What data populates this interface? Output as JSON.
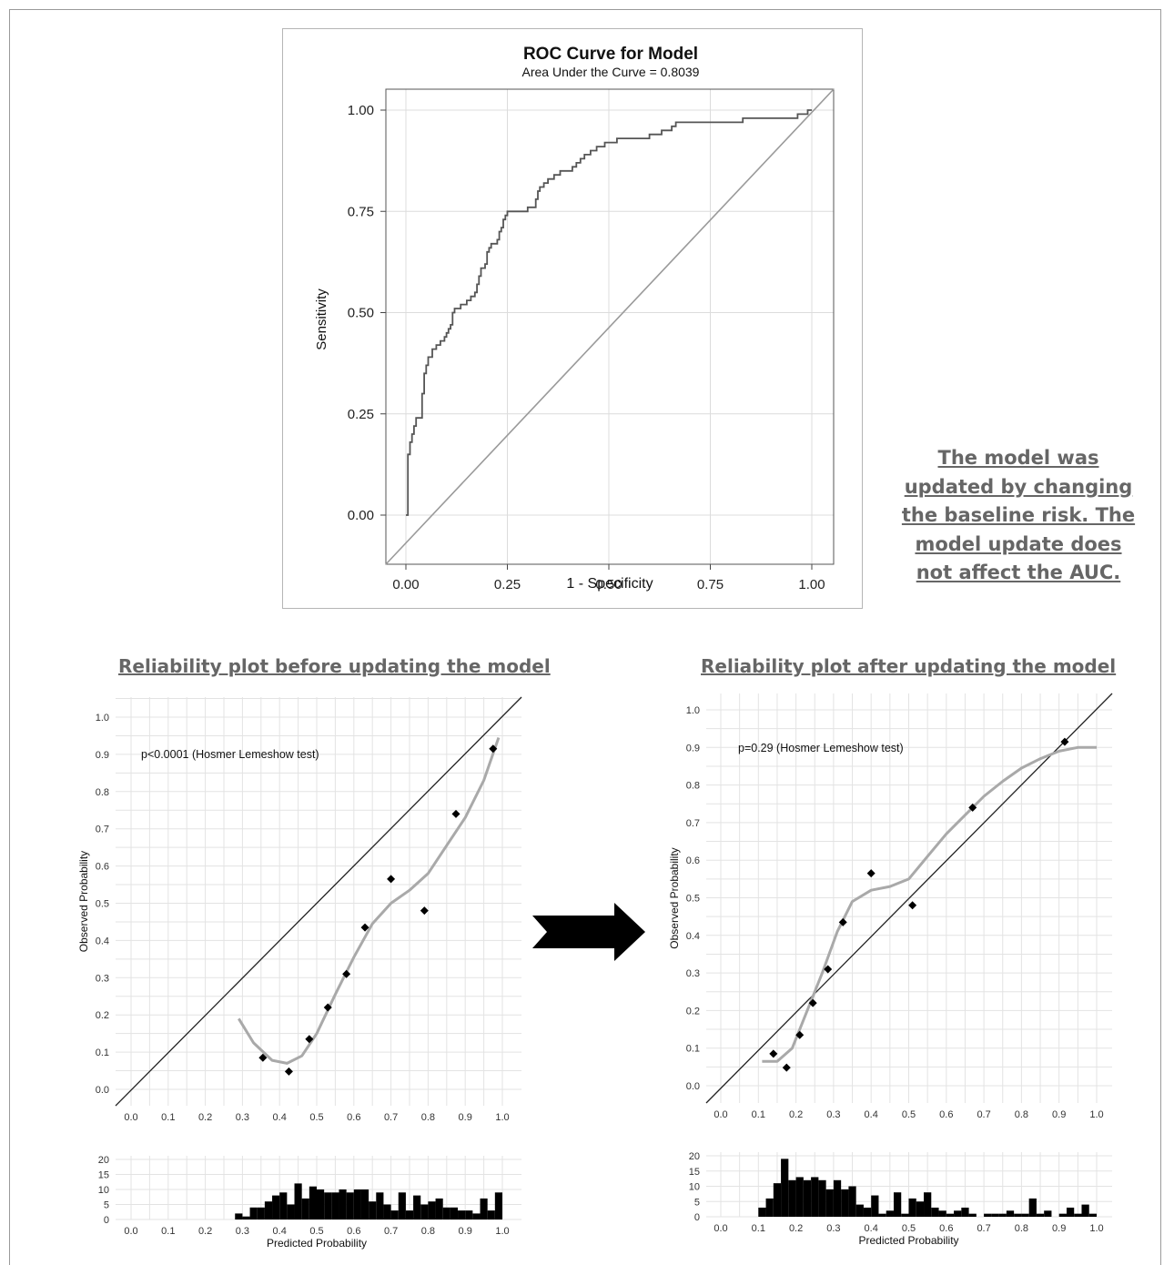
{
  "note": "The model was updated by changing the baseline risk. The model update does not affect the AUC.",
  "arrow_icon": "right-arrow-icon",
  "chart_data": [
    {
      "type": "line",
      "title": "ROC Curve for Model",
      "subtitle": "Area Under the Curve = 0.8039",
      "xlabel": "1 - Specificity",
      "ylabel": "Sensitivity",
      "xlim": [
        0,
        1
      ],
      "ylim": [
        0,
        1
      ],
      "xticks": [
        "0.00",
        "0.25",
        "0.50",
        "0.75",
        "1.00"
      ],
      "yticks": [
        "0.00",
        "0.25",
        "0.50",
        "0.75",
        "1.00"
      ],
      "grid": true,
      "series": [
        {
          "step": true,
          "points": [
            [
              0,
              0
            ],
            [
              0.005,
              0
            ],
            [
              0.005,
              0.15
            ],
            [
              0.01,
              0.15
            ],
            [
              0.01,
              0.18
            ],
            [
              0.015,
              0.18
            ],
            [
              0.015,
              0.2
            ],
            [
              0.02,
              0.2
            ],
            [
              0.02,
              0.22
            ],
            [
              0.025,
              0.22
            ],
            [
              0.025,
              0.24
            ],
            [
              0.04,
              0.24
            ],
            [
              0.04,
              0.29
            ],
            [
              0.04,
              0.3
            ],
            [
              0.045,
              0.3
            ],
            [
              0.045,
              0.35
            ],
            [
              0.05,
              0.35
            ],
            [
              0.05,
              0.37
            ],
            [
              0.055,
              0.37
            ],
            [
              0.055,
              0.39
            ],
            [
              0.065,
              0.39
            ],
            [
              0.065,
              0.41
            ],
            [
              0.075,
              0.41
            ],
            [
              0.075,
              0.42
            ],
            [
              0.085,
              0.42
            ],
            [
              0.085,
              0.43
            ],
            [
              0.095,
              0.43
            ],
            [
              0.095,
              0.44
            ],
            [
              0.1,
              0.44
            ],
            [
              0.1,
              0.45
            ],
            [
              0.105,
              0.45
            ],
            [
              0.105,
              0.46
            ],
            [
              0.11,
              0.46
            ],
            [
              0.11,
              0.47
            ],
            [
              0.115,
              0.47
            ],
            [
              0.115,
              0.5
            ],
            [
              0.12,
              0.5
            ],
            [
              0.12,
              0.51
            ],
            [
              0.135,
              0.51
            ],
            [
              0.135,
              0.52
            ],
            [
              0.15,
              0.52
            ],
            [
              0.15,
              0.53
            ],
            [
              0.16,
              0.53
            ],
            [
              0.16,
              0.54
            ],
            [
              0.17,
              0.54
            ],
            [
              0.17,
              0.55
            ],
            [
              0.175,
              0.55
            ],
            [
              0.175,
              0.57
            ],
            [
              0.18,
              0.57
            ],
            [
              0.18,
              0.59
            ],
            [
              0.185,
              0.59
            ],
            [
              0.185,
              0.61
            ],
            [
              0.195,
              0.61
            ],
            [
              0.195,
              0.62
            ],
            [
              0.2,
              0.62
            ],
            [
              0.2,
              0.65
            ],
            [
              0.205,
              0.65
            ],
            [
              0.205,
              0.66
            ],
            [
              0.21,
              0.66
            ],
            [
              0.21,
              0.67
            ],
            [
              0.225,
              0.67
            ],
            [
              0.225,
              0.68
            ],
            [
              0.23,
              0.68
            ],
            [
              0.23,
              0.7
            ],
            [
              0.235,
              0.7
            ],
            [
              0.235,
              0.71
            ],
            [
              0.24,
              0.71
            ],
            [
              0.24,
              0.73
            ],
            [
              0.245,
              0.73
            ],
            [
              0.245,
              0.74
            ],
            [
              0.25,
              0.74
            ],
            [
              0.25,
              0.75
            ],
            [
              0.3,
              0.75
            ],
            [
              0.3,
              0.76
            ],
            [
              0.32,
              0.76
            ],
            [
              0.32,
              0.78
            ],
            [
              0.325,
              0.78
            ],
            [
              0.325,
              0.8
            ],
            [
              0.33,
              0.8
            ],
            [
              0.33,
              0.81
            ],
            [
              0.34,
              0.81
            ],
            [
              0.34,
              0.82
            ],
            [
              0.35,
              0.82
            ],
            [
              0.35,
              0.83
            ],
            [
              0.365,
              0.83
            ],
            [
              0.365,
              0.84
            ],
            [
              0.38,
              0.84
            ],
            [
              0.38,
              0.85
            ],
            [
              0.41,
              0.85
            ],
            [
              0.41,
              0.86
            ],
            [
              0.42,
              0.86
            ],
            [
              0.42,
              0.87
            ],
            [
              0.43,
              0.87
            ],
            [
              0.43,
              0.88
            ],
            [
              0.44,
              0.88
            ],
            [
              0.44,
              0.89
            ],
            [
              0.455,
              0.89
            ],
            [
              0.455,
              0.9
            ],
            [
              0.47,
              0.9
            ],
            [
              0.47,
              0.91
            ],
            [
              0.49,
              0.91
            ],
            [
              0.49,
              0.92
            ],
            [
              0.52,
              0.92
            ],
            [
              0.52,
              0.93
            ],
            [
              0.6,
              0.93
            ],
            [
              0.6,
              0.94
            ],
            [
              0.63,
              0.94
            ],
            [
              0.63,
              0.95
            ],
            [
              0.655,
              0.95
            ],
            [
              0.655,
              0.96
            ],
            [
              0.665,
              0.96
            ],
            [
              0.665,
              0.97
            ],
            [
              0.83,
              0.97
            ],
            [
              0.83,
              0.98
            ],
            [
              0.965,
              0.98
            ],
            [
              0.965,
              0.99
            ],
            [
              0.99,
              0.99
            ],
            [
              0.99,
              1.0
            ],
            [
              1,
              1
            ]
          ]
        },
        {
          "reference": true,
          "points": [
            [
              0,
              0
            ],
            [
              1,
              1
            ]
          ]
        }
      ]
    },
    {
      "type": "scatter",
      "title": "Reliability plot before updating the model",
      "annotation": "p<0.0001 (Hosmer Lemeshow test)",
      "ylabel": "Observed Probability",
      "xlabel": "Predicted Probability",
      "xlim": [
        0,
        1
      ],
      "ylim": [
        0,
        1
      ],
      "ticks": [
        "0.0",
        "0.1",
        "0.2",
        "0.3",
        "0.4",
        "0.5",
        "0.6",
        "0.7",
        "0.8",
        "0.9",
        "1.0"
      ],
      "grid": true,
      "points": [
        [
          0.355,
          0.085
        ],
        [
          0.425,
          0.048
        ],
        [
          0.48,
          0.135
        ],
        [
          0.53,
          0.22
        ],
        [
          0.58,
          0.31
        ],
        [
          0.63,
          0.435
        ],
        [
          0.7,
          0.565
        ],
        [
          0.79,
          0.48
        ],
        [
          0.875,
          0.74
        ],
        [
          0.975,
          0.915
        ]
      ],
      "smooth": [
        [
          0.29,
          0.19
        ],
        [
          0.33,
          0.125
        ],
        [
          0.38,
          0.078
        ],
        [
          0.42,
          0.07
        ],
        [
          0.46,
          0.09
        ],
        [
          0.5,
          0.15
        ],
        [
          0.55,
          0.255
        ],
        [
          0.6,
          0.355
        ],
        [
          0.65,
          0.445
        ],
        [
          0.7,
          0.5
        ],
        [
          0.75,
          0.535
        ],
        [
          0.8,
          0.58
        ],
        [
          0.85,
          0.655
        ],
        [
          0.9,
          0.73
        ],
        [
          0.95,
          0.83
        ],
        [
          0.99,
          0.945
        ]
      ],
      "histogram": {
        "ylim": [
          0,
          20
        ],
        "yticks": [
          "0",
          "5",
          "10",
          "15",
          "20"
        ],
        "bin_width": 0.02,
        "bins": [
          [
            0.28,
            2
          ],
          [
            0.3,
            1
          ],
          [
            0.32,
            4
          ],
          [
            0.34,
            4
          ],
          [
            0.36,
            6
          ],
          [
            0.38,
            8
          ],
          [
            0.4,
            9
          ],
          [
            0.42,
            5
          ],
          [
            0.44,
            12
          ],
          [
            0.46,
            7
          ],
          [
            0.48,
            11
          ],
          [
            0.5,
            10
          ],
          [
            0.52,
            9
          ],
          [
            0.54,
            9
          ],
          [
            0.56,
            10
          ],
          [
            0.58,
            9
          ],
          [
            0.6,
            10
          ],
          [
            0.62,
            10
          ],
          [
            0.64,
            6
          ],
          [
            0.66,
            9
          ],
          [
            0.68,
            5
          ],
          [
            0.7,
            3
          ],
          [
            0.72,
            9
          ],
          [
            0.74,
            3
          ],
          [
            0.76,
            8
          ],
          [
            0.78,
            5
          ],
          [
            0.8,
            6
          ],
          [
            0.82,
            7
          ],
          [
            0.84,
            4
          ],
          [
            0.86,
            4
          ],
          [
            0.88,
            3
          ],
          [
            0.9,
            3
          ],
          [
            0.92,
            2
          ],
          [
            0.94,
            7
          ],
          [
            0.96,
            3
          ],
          [
            0.98,
            9
          ]
        ]
      }
    },
    {
      "type": "scatter",
      "title": "Reliability plot after updating the model",
      "annotation": "p=0.29 (Hosmer Lemeshow test)",
      "ylabel": "Observed Probability",
      "xlabel": "Predicted Probability",
      "xlim": [
        0,
        1
      ],
      "ylim": [
        0,
        1
      ],
      "ticks": [
        "0.0",
        "0.1",
        "0.2",
        "0.3",
        "0.4",
        "0.5",
        "0.6",
        "0.7",
        "0.8",
        "0.9",
        "1.0"
      ],
      "grid": true,
      "points": [
        [
          0.14,
          0.085
        ],
        [
          0.175,
          0.048
        ],
        [
          0.21,
          0.135
        ],
        [
          0.245,
          0.22
        ],
        [
          0.285,
          0.31
        ],
        [
          0.325,
          0.435
        ],
        [
          0.4,
          0.565
        ],
        [
          0.51,
          0.48
        ],
        [
          0.67,
          0.74
        ],
        [
          0.915,
          0.915
        ]
      ],
      "smooth": [
        [
          0.11,
          0.065
        ],
        [
          0.15,
          0.065
        ],
        [
          0.19,
          0.1
        ],
        [
          0.23,
          0.2
        ],
        [
          0.27,
          0.3
        ],
        [
          0.31,
          0.41
        ],
        [
          0.35,
          0.49
        ],
        [
          0.4,
          0.52
        ],
        [
          0.45,
          0.53
        ],
        [
          0.5,
          0.55
        ],
        [
          0.55,
          0.61
        ],
        [
          0.6,
          0.67
        ],
        [
          0.65,
          0.72
        ],
        [
          0.7,
          0.77
        ],
        [
          0.75,
          0.81
        ],
        [
          0.8,
          0.845
        ],
        [
          0.85,
          0.87
        ],
        [
          0.9,
          0.89
        ],
        [
          0.95,
          0.9
        ],
        [
          1.0,
          0.9
        ]
      ],
      "histogram": {
        "ylim": [
          0,
          20
        ],
        "yticks": [
          "0",
          "5",
          "10",
          "15",
          "20"
        ],
        "bin_width": 0.02,
        "bins": [
          [
            0.1,
            3
          ],
          [
            0.12,
            6
          ],
          [
            0.14,
            11
          ],
          [
            0.16,
            19
          ],
          [
            0.18,
            12
          ],
          [
            0.2,
            13
          ],
          [
            0.22,
            12
          ],
          [
            0.24,
            13
          ],
          [
            0.26,
            12
          ],
          [
            0.28,
            9
          ],
          [
            0.3,
            12
          ],
          [
            0.32,
            9
          ],
          [
            0.34,
            10
          ],
          [
            0.36,
            4
          ],
          [
            0.38,
            3
          ],
          [
            0.4,
            7
          ],
          [
            0.42,
            1
          ],
          [
            0.44,
            2
          ],
          [
            0.46,
            8
          ],
          [
            0.48,
            1
          ],
          [
            0.5,
            6
          ],
          [
            0.52,
            5
          ],
          [
            0.54,
            8
          ],
          [
            0.56,
            3
          ],
          [
            0.58,
            2
          ],
          [
            0.6,
            1
          ],
          [
            0.62,
            2
          ],
          [
            0.64,
            3
          ],
          [
            0.66,
            1
          ],
          [
            0.7,
            1
          ],
          [
            0.72,
            1
          ],
          [
            0.74,
            1
          ],
          [
            0.76,
            2
          ],
          [
            0.78,
            1
          ],
          [
            0.8,
            1
          ],
          [
            0.82,
            6
          ],
          [
            0.84,
            1
          ],
          [
            0.86,
            2
          ],
          [
            0.9,
            1
          ],
          [
            0.92,
            3
          ],
          [
            0.94,
            1
          ],
          [
            0.96,
            4
          ],
          [
            0.98,
            1
          ]
        ]
      }
    }
  ]
}
